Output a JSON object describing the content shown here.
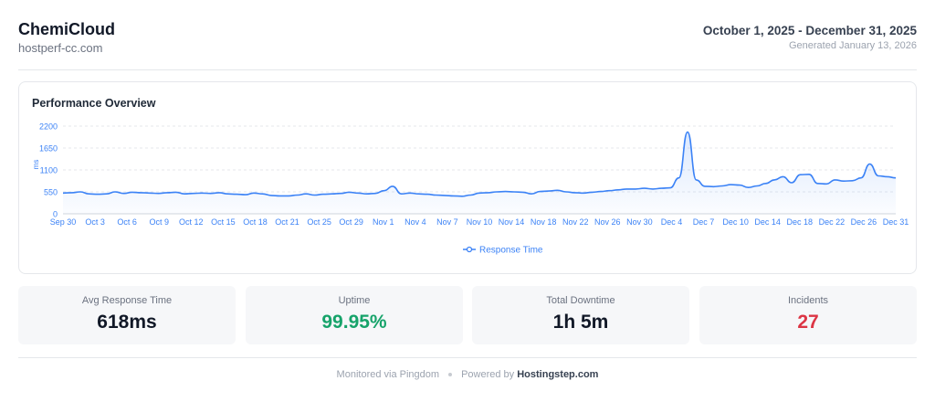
{
  "header": {
    "brand": "ChemiCloud",
    "domain": "hostperf-cc.com",
    "period": "October 1, 2025 - December 31, 2025",
    "generated": "Generated January 13, 2026"
  },
  "chart_card": {
    "title": "Performance Overview"
  },
  "chart_data": {
    "type": "area",
    "title": "Performance Overview",
    "ylabel": "ms",
    "xlabel": "",
    "ylim": [
      0,
      2200
    ],
    "yticks": [
      "0",
      "550",
      "1100",
      "1650",
      "2200"
    ],
    "xticks": [
      "Sep 30",
      "Oct 3",
      "Oct 6",
      "Oct 9",
      "Oct 12",
      "Oct 15",
      "Oct 18",
      "Oct 21",
      "Oct 25",
      "Oct 29",
      "Nov 1",
      "Nov 4",
      "Nov 7",
      "Nov 10",
      "Nov 14",
      "Nov 18",
      "Nov 22",
      "Nov 26",
      "Nov 30",
      "Dec 4",
      "Dec 7",
      "Dec 10",
      "Dec 14",
      "Dec 18",
      "Dec 22",
      "Dec 26",
      "Dec 31"
    ],
    "grid": true,
    "legend_position": "bottom-center",
    "color": "#3b82f6",
    "series": [
      {
        "name": "Response Time",
        "values": [
          520,
          530,
          550,
          500,
          490,
          500,
          550,
          510,
          540,
          530,
          520,
          510,
          530,
          540,
          500,
          510,
          520,
          510,
          530,
          500,
          490,
          480,
          520,
          500,
          460,
          450,
          450,
          470,
          500,
          470,
          490,
          500,
          510,
          540,
          520,
          500,
          510,
          580,
          690,
          500,
          520,
          500,
          490,
          470,
          460,
          450,
          440,
          470,
          520,
          530,
          550,
          560,
          550,
          540,
          500,
          560,
          570,
          590,
          550,
          530,
          520,
          540,
          560,
          580,
          600,
          620,
          620,
          640,
          620,
          640,
          650,
          900,
          2050,
          850,
          690,
          680,
          700,
          730,
          720,
          660,
          700,
          760,
          850,
          930,
          780,
          980,
          990,
          760,
          750,
          850,
          820,
          830,
          900,
          1250,
          950,
          930,
          900
        ]
      }
    ]
  },
  "stats": [
    {
      "label": "Avg Response Time",
      "value": "618ms",
      "tone": "default"
    },
    {
      "label": "Uptime",
      "value": "99.95%",
      "tone": "green"
    },
    {
      "label": "Total Downtime",
      "value": "1h 5m",
      "tone": "default"
    },
    {
      "label": "Incidents",
      "value": "27",
      "tone": "red"
    }
  ],
  "footer": {
    "monitored": "Monitored via Pingdom",
    "powered_prefix": "Powered by",
    "powered_brand": "Hostingstep.com"
  }
}
